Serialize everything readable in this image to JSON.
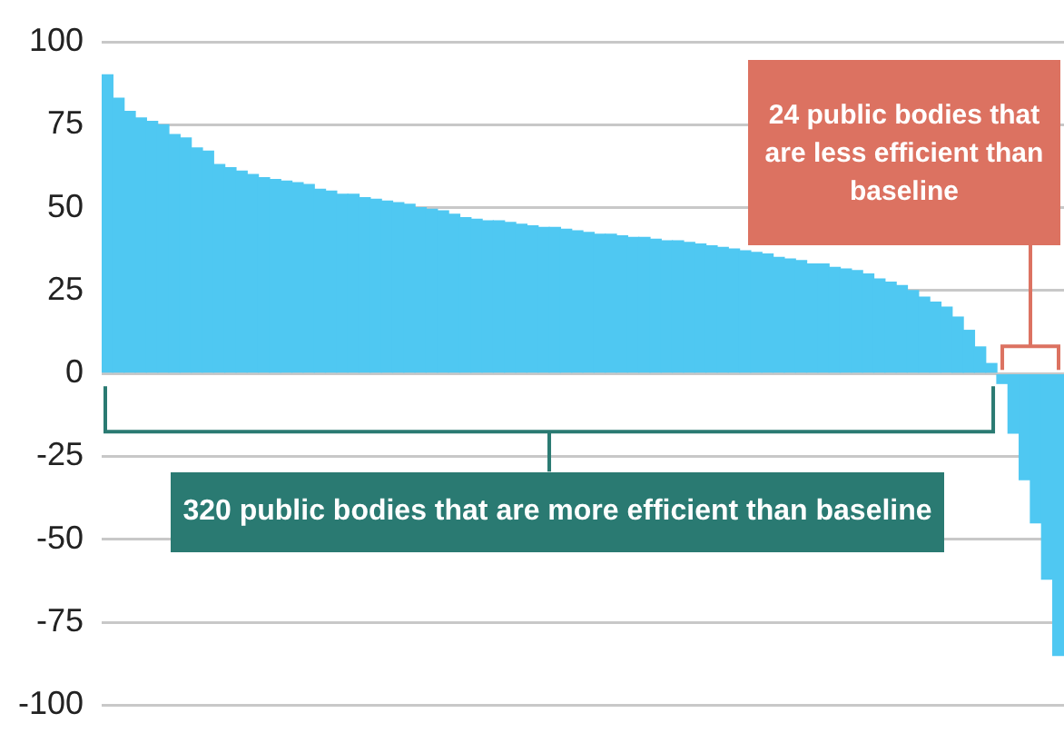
{
  "chart_data": {
    "type": "bar",
    "categories": [
      null,
      null,
      null,
      null,
      null,
      null,
      null,
      null,
      null,
      null,
      null,
      null,
      null,
      null,
      null,
      null,
      null,
      null,
      null,
      null,
      null,
      null,
      null,
      null,
      null,
      null,
      null,
      null,
      null,
      null,
      null,
      null,
      null,
      null,
      null,
      null,
      null,
      null,
      null,
      null,
      null,
      null,
      null,
      null,
      null,
      null,
      null,
      null,
      null,
      null,
      null,
      null,
      null,
      null,
      null,
      null,
      null,
      null,
      null,
      null,
      null,
      null,
      null,
      null,
      null,
      null,
      null,
      null,
      null,
      null,
      null,
      null,
      null,
      null,
      null,
      null,
      null,
      null,
      null,
      null,
      null,
      null,
      null,
      null,
      null,
      null
    ],
    "values": [
      90,
      83,
      79,
      77,
      76,
      75,
      72,
      71,
      68,
      67,
      63,
      62,
      61,
      60,
      59,
      58.5,
      58,
      57.5,
      57,
      55.5,
      55,
      54,
      54,
      53,
      52.5,
      52,
      51.5,
      51,
      50,
      49.5,
      49,
      48,
      47,
      46.5,
      46,
      46,
      45.5,
      45,
      44.5,
      44,
      44,
      43.5,
      43,
      42.5,
      42,
      42,
      41.5,
      41,
      41,
      40.5,
      40,
      40,
      39.5,
      39,
      38.5,
      38,
      37.5,
      37,
      36.5,
      36,
      35,
      34.5,
      34,
      33,
      33,
      32,
      31.5,
      31,
      30,
      28.5,
      27.5,
      26.5,
      25,
      23,
      21.5,
      20,
      17,
      13,
      8,
      3,
      -3,
      -18,
      -32,
      -45,
      -62,
      -85
    ],
    "color": "#4fc8f2",
    "ylim": [
      -100,
      100
    ],
    "yticks": [
      -100,
      -75,
      -50,
      -25,
      0,
      25,
      50,
      75,
      100
    ],
    "grid": "y",
    "legend": false,
    "tick_labels": "y",
    "annotations": [
      "24 public bodies that are less efficient than baseline",
      "320 public bodies that are more efficient than baseline"
    ]
  }
}
